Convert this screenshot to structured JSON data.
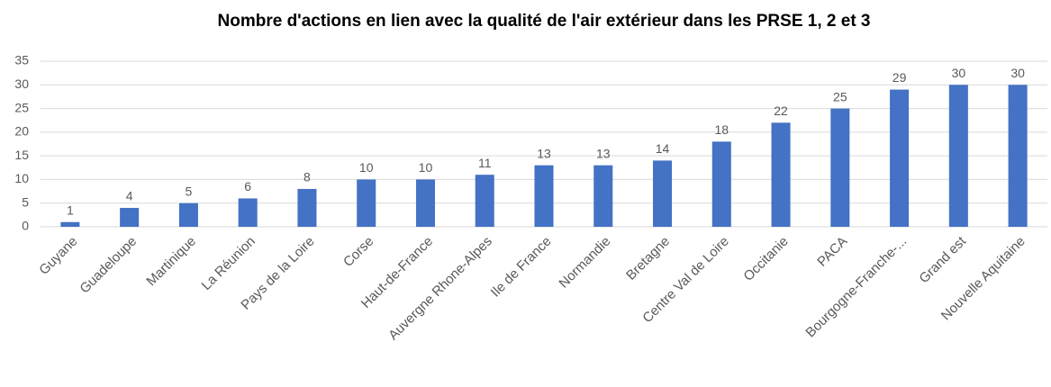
{
  "chart_data": {
    "type": "bar",
    "title": "Nombre d'actions en lien avec la qualité de l'air extérieur  dans les PRSE 1, 2 et 3",
    "categories": [
      "Guyane",
      "Guadeloupe",
      "Martinique",
      "La Réunion",
      "Pays de la Loire",
      "Corse",
      "Haut-de-France",
      "Auvergne Rhone-Alpes",
      "Ile de France",
      "Normandie",
      "Bretagne",
      "Centre Val de Loire",
      "Occitanie",
      "PACA",
      "Bourgogne-Franche-...",
      "Grand est",
      "Nouvelle Aquitaine"
    ],
    "values": [
      1,
      4,
      5,
      6,
      8,
      10,
      10,
      11,
      13,
      13,
      14,
      18,
      22,
      25,
      29,
      30,
      30
    ],
    "color": "#4472c4",
    "ylim": [
      0,
      35
    ],
    "yticks": [
      0,
      5,
      10,
      15,
      20,
      25,
      30,
      35
    ],
    "grid": true
  }
}
